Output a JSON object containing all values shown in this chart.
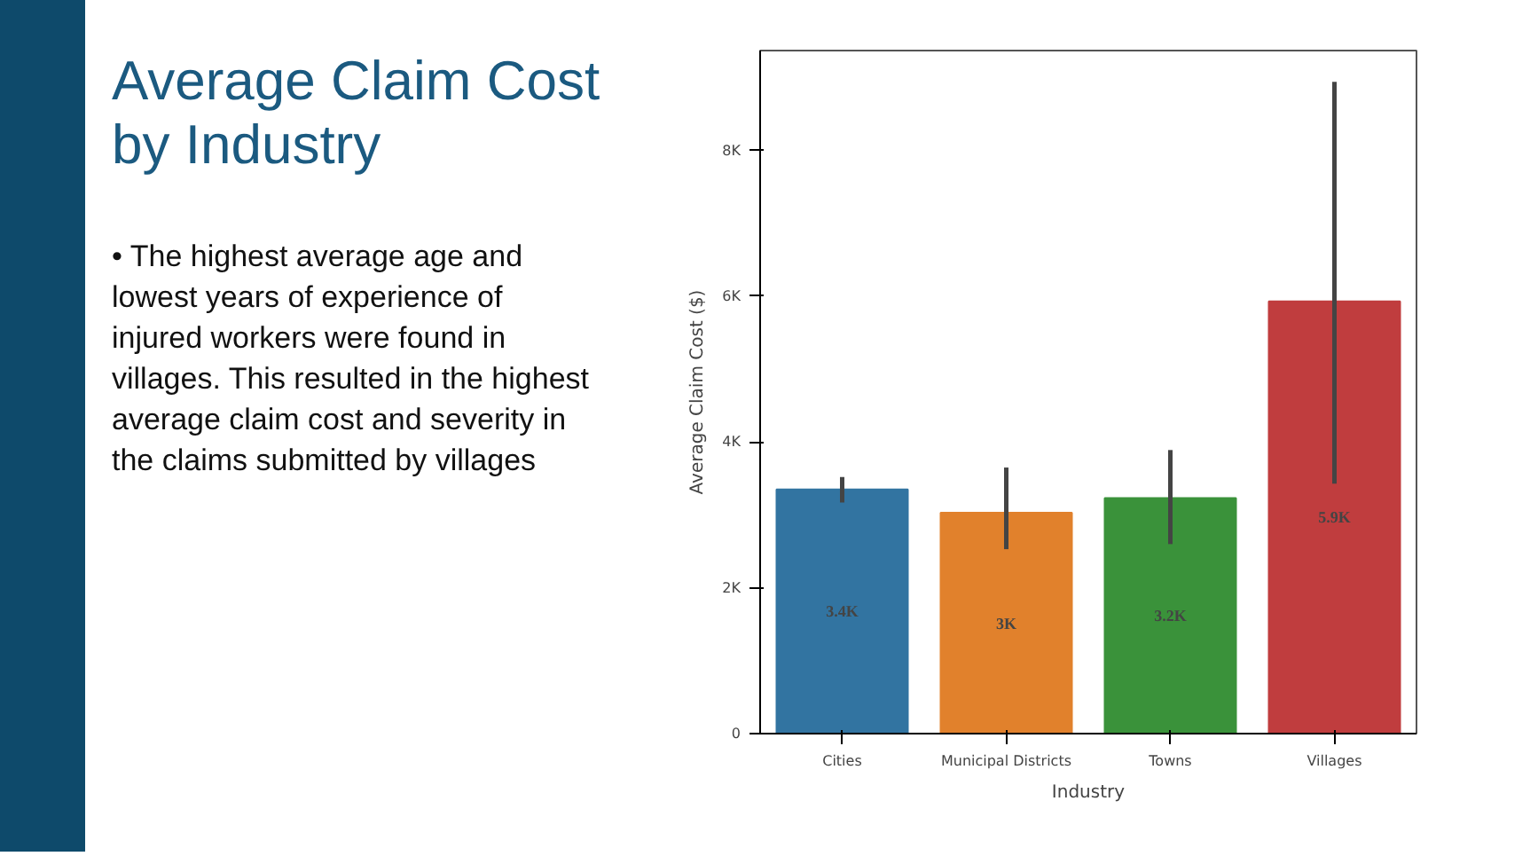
{
  "chart_data": {
    "type": "bar",
    "title": "Average Claim Cost by Industry",
    "annotations": [
      "• The highest average age and lowest years of experience of injured workers were found in villages. This resulted in the highest average claim cost and severity in the claims submitted by villages"
    ],
    "xlabel": "Industry",
    "ylabel": "Average Claim Cost ($)",
    "categories": [
      "Cities",
      "Municipal Districts",
      "Towns",
      "Villages"
    ],
    "values": [
      3350,
      3030,
      3230,
      5930
    ],
    "colors": [
      "#3274a1",
      "#e1812c",
      "#3a923a",
      "#c03d3e"
    ],
    "errors": [
      [
        3170,
        3520
      ],
      [
        2530,
        3650
      ],
      [
        2600,
        3890
      ],
      [
        3430,
        8940
      ]
    ],
    "value_labels": [
      "3.4K",
      "3K",
      "3.2K",
      "5.9K"
    ],
    "ylim": [
      0,
      9370
    ],
    "yticks": [
      0,
      {
        "value": 2000,
        "label": "2K"
      },
      {
        "value": 4000,
        "label": "4K"
      },
      {
        "value": 6000,
        "label": "6K"
      },
      {
        "value": 8000,
        "label": "8K"
      }
    ],
    "grid": false
  }
}
